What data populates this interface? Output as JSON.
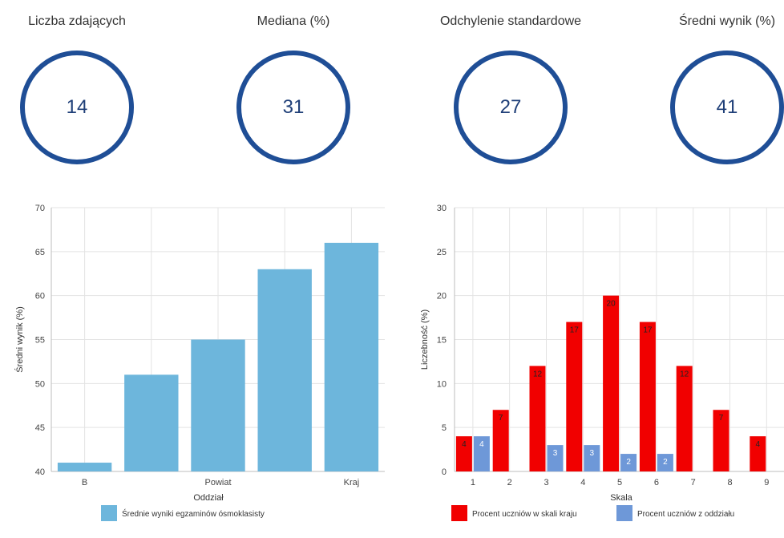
{
  "stats": [
    {
      "label": "Liczba zdających",
      "value": "14"
    },
    {
      "label": "Mediana (%)",
      "value": "31"
    },
    {
      "label": "Odchylenie standardowe",
      "value": "27"
    },
    {
      "label": "Średni wynik (%)",
      "value": "41"
    }
  ],
  "colors": {
    "circle_border": "#1f4e96",
    "bar_blue": "#6db6dc",
    "bar_red": "#f10000",
    "bar_periwinkle": "#6e98d8"
  },
  "chart_data": [
    {
      "type": "bar",
      "categories": [
        "B",
        "",
        "Powiat",
        "",
        "Kraj"
      ],
      "series": [
        {
          "name": "Średnie wyniki egzaminów ósmoklasisty",
          "values": [
            41,
            51,
            55,
            63,
            66
          ]
        }
      ],
      "xlabel": "Oddział",
      "ylabel": "Średni wynik (%)",
      "ylim": [
        40,
        70
      ],
      "yticks": [
        40,
        45,
        50,
        55,
        60,
        65,
        70
      ],
      "grid": true,
      "legend": "bottom"
    },
    {
      "type": "bar",
      "categories": [
        "1",
        "2",
        "3",
        "4",
        "5",
        "6",
        "7",
        "8",
        "9"
      ],
      "series": [
        {
          "name": "Procent uczniów w skali kraju",
          "values": [
            4,
            7,
            12,
            17,
            20,
            17,
            12,
            7,
            4
          ],
          "labels": [
            "4",
            "7",
            "12",
            "17",
            "20",
            "17",
            "12",
            "7",
            "4"
          ]
        },
        {
          "name": "Procent uczniów z oddziału",
          "values": [
            4,
            0,
            3,
            3,
            2,
            2,
            0,
            0,
            0
          ],
          "labels": [
            "4",
            "",
            "3",
            "3",
            "2",
            "2",
            "",
            "",
            ""
          ]
        }
      ],
      "xlabel": "Skala",
      "ylabel": "Liczebność (%)",
      "ylim": [
        0,
        30
      ],
      "yticks": [
        0,
        5,
        10,
        15,
        20,
        25,
        30
      ],
      "grid": true,
      "legend": "bottom"
    }
  ]
}
